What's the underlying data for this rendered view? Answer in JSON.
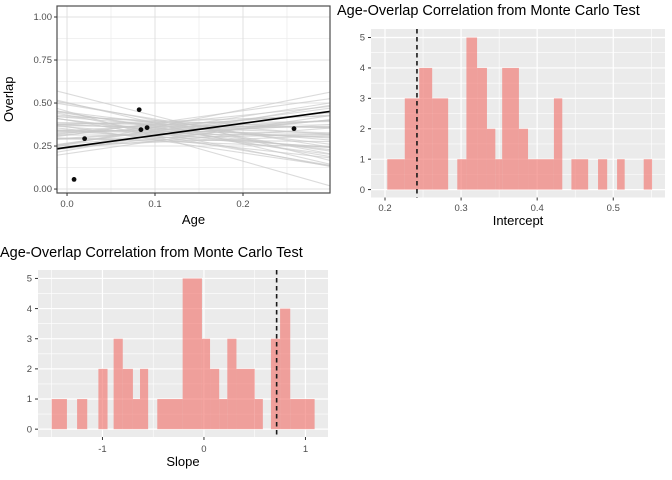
{
  "colors": {
    "panel": "#EBEBEB",
    "hist_grid": "#FFFFFF",
    "bar": "rgba(241,114,107,0.63)",
    "vline": "#1A1A1A",
    "point": "#0D0D0D",
    "fit": "#000000",
    "sim": "#C8C8C8",
    "white_grid_major": "#E0E0E0",
    "white_grid_minor": "#EDEDED",
    "border": "#4D4D4D",
    "tick": "#333333",
    "tick_label": "#4D4D4D"
  },
  "chart_data": [
    {
      "type": "scatter",
      "title": "",
      "xlabel": "Age",
      "ylabel": "Overlap",
      "xlim": [
        -0.0114,
        0.2989
      ],
      "ylim": [
        -0.023,
        1.064
      ],
      "x_ticks": {
        "values": [
          0.0,
          0.1,
          0.2
        ],
        "labels": [
          "0.0",
          "0.1",
          "0.2"
        ]
      },
      "y_ticks": {
        "values": [
          0.0,
          0.25,
          0.5,
          0.75,
          1.0
        ],
        "labels": [
          "0.00",
          "0.25",
          "0.50",
          "0.75",
          "1.00"
        ]
      },
      "points": [
        [
          0.008,
          0.056
        ],
        [
          0.02,
          0.293
        ],
        [
          0.082,
          0.461
        ],
        [
          0.084,
          0.345
        ],
        [
          0.091,
          0.357
        ],
        [
          0.258,
          0.351
        ]
      ],
      "fit_line": {
        "intercept": 0.242,
        "slope": 0.7
      },
      "sim_lines": [
        [
          0.452,
          -1.45
        ],
        [
          0.555,
          -1.3
        ],
        [
          0.503,
          -1.2
        ],
        [
          0.43,
          -1.0
        ],
        [
          0.498,
          -0.98
        ],
        [
          0.401,
          -0.88
        ],
        [
          0.443,
          -0.85
        ],
        [
          0.489,
          -0.82
        ],
        [
          0.362,
          -0.76
        ],
        [
          0.439,
          -0.73
        ],
        [
          0.402,
          -0.67
        ],
        [
          0.446,
          -0.62
        ],
        [
          0.402,
          -0.58
        ],
        [
          0.349,
          -0.56
        ],
        [
          0.416,
          -0.44
        ],
        [
          0.361,
          -0.4
        ],
        [
          0.426,
          -0.36
        ],
        [
          0.335,
          -0.3
        ],
        [
          0.375,
          -0.26
        ],
        [
          0.419,
          -0.21
        ],
        [
          0.296,
          -0.18
        ],
        [
          0.372,
          -0.15
        ],
        [
          0.339,
          -0.12
        ],
        [
          0.386,
          -0.1
        ],
        [
          0.343,
          -0.07
        ],
        [
          0.291,
          -0.05
        ],
        [
          0.367,
          -0.02
        ],
        [
          0.314,
          0.01
        ],
        [
          0.38,
          0.04
        ],
        [
          0.291,
          0.08
        ],
        [
          0.332,
          0.11
        ],
        [
          0.377,
          0.16
        ],
        [
          0.253,
          0.19
        ],
        [
          0.327,
          0.24
        ],
        [
          0.294,
          0.27
        ],
        [
          0.34,
          0.3
        ],
        [
          0.296,
          0.34
        ],
        [
          0.241,
          0.38
        ],
        [
          0.317,
          0.42
        ],
        [
          0.261,
          0.47
        ],
        [
          0.325,
          0.52
        ],
        [
          0.236,
          0.56
        ],
        [
          0.267,
          0.68
        ],
        [
          0.313,
          0.71
        ],
        [
          0.205,
          0.74
        ],
        [
          0.264,
          0.79
        ],
        [
          0.224,
          0.88
        ],
        [
          0.258,
          1.02
        ]
      ]
    },
    {
      "type": "histogram",
      "title": "Age-Overlap Correlation from Monte Carlo Test",
      "xlabel": "Intercept",
      "ylabel": "",
      "xlim": [
        0.1816,
        0.568
      ],
      "ylim": [
        -0.26,
        5.28
      ],
      "x_ticks": {
        "values": [
          0.2,
          0.3,
          0.4,
          0.5
        ],
        "labels": [
          "0.2",
          "0.3",
          "0.4",
          "0.5"
        ]
      },
      "y_ticks": {
        "values": [
          0,
          1,
          2,
          3,
          4,
          5
        ],
        "labels": [
          "0",
          "1",
          "2",
          "3",
          "4",
          "5"
        ]
      },
      "bars": [
        [
          0.203,
          0.226,
          1
        ],
        [
          0.226,
          0.245,
          3
        ],
        [
          0.245,
          0.262,
          4
        ],
        [
          0.262,
          0.283,
          3
        ],
        [
          0.295,
          0.307,
          1
        ],
        [
          0.307,
          0.321,
          5
        ],
        [
          0.321,
          0.334,
          4
        ],
        [
          0.334,
          0.345,
          2
        ],
        [
          0.345,
          0.354,
          1
        ],
        [
          0.354,
          0.376,
          4
        ],
        [
          0.376,
          0.388,
          2
        ],
        [
          0.388,
          0.422,
          1
        ],
        [
          0.422,
          0.433,
          3
        ],
        [
          0.445,
          0.467,
          1
        ],
        [
          0.48,
          0.492,
          1
        ],
        [
          0.505,
          0.515,
          1
        ],
        [
          0.54,
          0.551,
          1
        ]
      ],
      "vline": 0.242
    },
    {
      "type": "histogram",
      "title": "Age-Overlap Correlation from Monte Carlo Test",
      "xlabel": "Slope",
      "ylabel": "",
      "xlim": [
        -1.635,
        1.222
      ],
      "ylim": [
        -0.26,
        5.28
      ],
      "x_ticks": {
        "values": [
          -1,
          0,
          1
        ],
        "labels": [
          "-1",
          "0",
          "1"
        ]
      },
      "y_ticks": {
        "values": [
          0,
          1,
          2,
          3,
          4,
          5
        ],
        "labels": [
          "0",
          "1",
          "2",
          "3",
          "4",
          "5"
        ]
      },
      "bars": [
        [
          -1.5,
          -1.35,
          1
        ],
        [
          -1.25,
          -1.15,
          1
        ],
        [
          -1.04,
          -0.95,
          2
        ],
        [
          -0.89,
          -0.8,
          3
        ],
        [
          -0.8,
          -0.7,
          2
        ],
        [
          -0.7,
          -0.63,
          1
        ],
        [
          -0.63,
          -0.55,
          2
        ],
        [
          -0.46,
          -0.21,
          1
        ],
        [
          -0.21,
          -0.02,
          5
        ],
        [
          -0.02,
          0.06,
          3
        ],
        [
          0.06,
          0.15,
          2
        ],
        [
          0.15,
          0.23,
          1
        ],
        [
          0.23,
          0.32,
          3
        ],
        [
          0.32,
          0.5,
          2
        ],
        [
          0.5,
          0.58,
          1
        ],
        [
          0.66,
          0.75,
          3
        ],
        [
          0.75,
          0.85,
          4
        ],
        [
          0.85,
          1.09,
          1
        ]
      ],
      "vline": 0.716
    }
  ]
}
